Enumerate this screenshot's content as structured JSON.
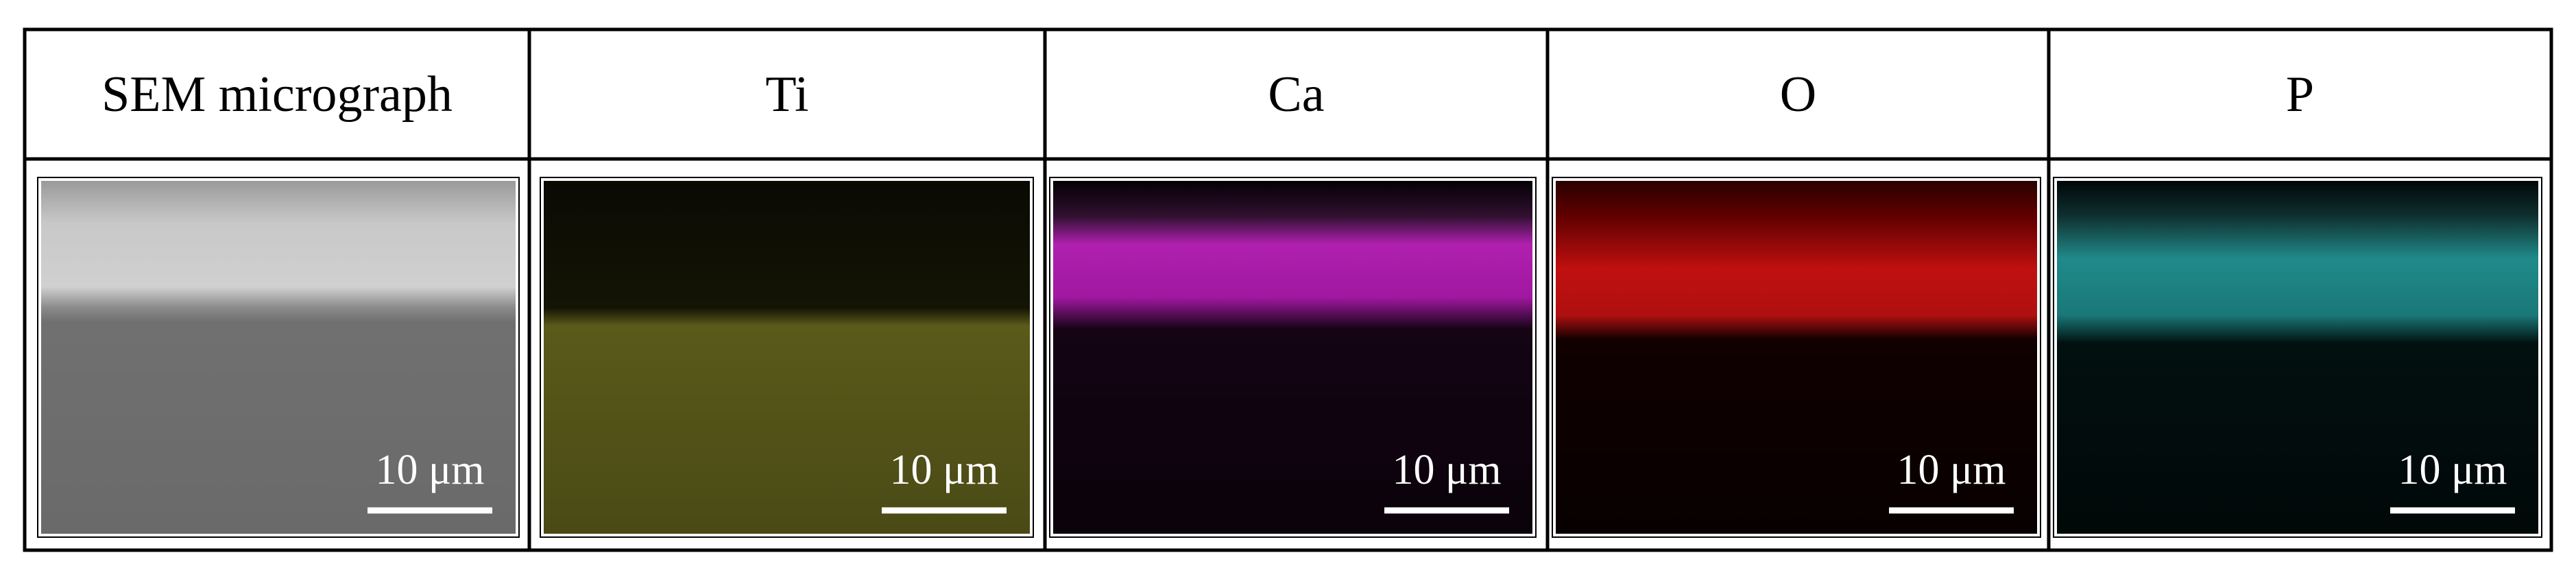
{
  "panels": [
    {
      "header": "SEM micrograph",
      "scale_bar": "10 μm"
    },
    {
      "header": "Ti",
      "scale_bar": "10 μm"
    },
    {
      "header": "Ca",
      "scale_bar": "10 μm"
    },
    {
      "header": "O",
      "scale_bar": "10 μm"
    },
    {
      "header": "P",
      "scale_bar": "10 μm"
    }
  ]
}
